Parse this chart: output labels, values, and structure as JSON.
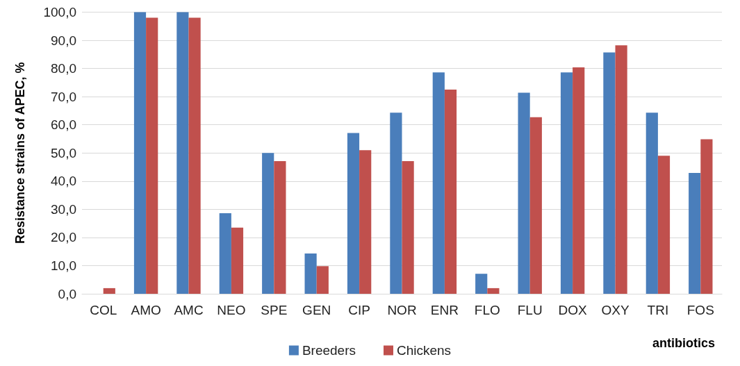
{
  "chart_data": {
    "type": "bar",
    "xlabel": "antibiotics",
    "ylabel": "Resistance strains of APEC, %",
    "categories": [
      "COL",
      "AMO",
      "AMC",
      "NEO",
      "SPE",
      "GEN",
      "CIP",
      "NOR",
      "ENR",
      "FLO",
      "FLU",
      "DOX",
      "OXY",
      "TRI",
      "FOS"
    ],
    "series": [
      {
        "name": "Breeders",
        "color": "#4a7ebb",
        "values": [
          0,
          100,
          100,
          28.6,
          50,
          14.3,
          57.1,
          64.3,
          78.6,
          7.1,
          71.4,
          78.6,
          85.7,
          64.3,
          42.9
        ]
      },
      {
        "name": "Chickens",
        "color": "#c0504d",
        "values": [
          2.0,
          98.0,
          98.0,
          23.5,
          47.1,
          9.8,
          51.0,
          47.1,
          72.5,
          2.0,
          62.7,
          80.4,
          88.2,
          49.0,
          54.9
        ]
      }
    ],
    "ylim": [
      0,
      100
    ],
    "yticks": [
      {
        "value": 0,
        "label": "0,0"
      },
      {
        "value": 10,
        "label": "10,0"
      },
      {
        "value": 20,
        "label": "20,0"
      },
      {
        "value": 30,
        "label": "30,0"
      },
      {
        "value": 40,
        "label": "40,0"
      },
      {
        "value": 50,
        "label": "50,0"
      },
      {
        "value": 60,
        "label": "60,0"
      },
      {
        "value": 70,
        "label": "70,0"
      },
      {
        "value": 80,
        "label": "80,0"
      },
      {
        "value": 90,
        "label": "90,0"
      },
      {
        "value": 100,
        "label": "100,0"
      }
    ],
    "grid": "y",
    "legend": "bottom"
  }
}
